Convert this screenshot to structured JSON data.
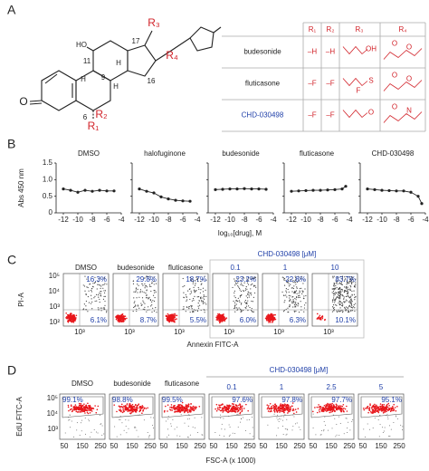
{
  "panel_a": {
    "label": "A",
    "structure": {
      "labels": [
        "HO",
        "H",
        "H",
        "H",
        "R₂",
        "R₁",
        "R₃",
        "R₄",
        "17",
        "16",
        "9",
        "11",
        "6",
        "O"
      ]
    },
    "table": {
      "header": [
        "R₁",
        "R₂",
        "R₃",
        "R₄"
      ],
      "rows": [
        {
          "name": "budesonide",
          "r1": "–H",
          "r2": "–H",
          "r3": [
            "OH"
          ],
          "r4": [
            "O",
            "O"
          ]
        },
        {
          "name": "fluticasone",
          "r1": "–F",
          "r2": "–F",
          "r3": [
            "S",
            "F"
          ],
          "r4": [
            "O",
            "O"
          ]
        },
        {
          "name": "CHD-030498",
          "r1": "–F",
          "r2": "–F",
          "r3": [
            "O"
          ],
          "r4": [
            "O",
            "N"
          ]
        }
      ]
    }
  },
  "panel_b": {
    "label": "B",
    "x_label": "log₁₀[drug], M"
  },
  "chart_data": [
    {
      "type": "line",
      "title": "DMSO",
      "title_color": "#222222",
      "y_label": "Abs 450 nm",
      "color": "#222222",
      "x": [
        -12,
        -11,
        -10,
        -9,
        -8,
        -7,
        -6,
        -5
      ],
      "values": [
        0.72,
        0.68,
        0.62,
        0.68,
        0.65,
        0.68,
        0.66,
        0.66
      ],
      "xlim": [
        -13,
        -4
      ],
      "ylim": [
        0,
        1.5
      ],
      "xticks": [
        -12,
        -10,
        -8,
        -6,
        -4
      ],
      "yticks": [
        0,
        0.5,
        {
          "value": 1,
          "label": "1.0"
        },
        1.5
      ]
    },
    {
      "type": "line",
      "title": "halofuginone",
      "title_color": "#222222",
      "color": "#222222",
      "x": [
        -12,
        -11,
        -10,
        -9,
        -8,
        -7,
        -6,
        -5
      ],
      "values": [
        0.72,
        0.65,
        0.6,
        0.48,
        0.42,
        0.38,
        0.36,
        0.35
      ],
      "xlim": [
        -13,
        -4
      ],
      "ylim": [
        0,
        1.5
      ],
      "xticks": [
        -12,
        -10,
        -8,
        -6,
        -4
      ],
      "yticks": [
        0,
        0.5,
        1,
        1.5
      ]
    },
    {
      "type": "line",
      "title": "budesonide",
      "title_color": "#222222",
      "color": "#222222",
      "x": [
        -12,
        -11,
        -10,
        -9,
        -8,
        -7,
        -6,
        -5
      ],
      "values": [
        0.7,
        0.71,
        0.72,
        0.72,
        0.73,
        0.72,
        0.72,
        0.71
      ],
      "xlim": [
        -13,
        -4
      ],
      "ylim": [
        0,
        1.5
      ],
      "xticks": [
        -12,
        -10,
        -8,
        -6,
        -4
      ],
      "yticks": [
        0,
        0.5,
        1,
        1.5
      ]
    },
    {
      "type": "line",
      "title": "fluticasone",
      "title_color": "#222222",
      "color": "#222222",
      "x": [
        -12,
        -11,
        -10,
        -9,
        -8,
        -7,
        -6,
        -5,
        -4.5
      ],
      "values": [
        0.65,
        0.66,
        0.67,
        0.68,
        0.68,
        0.69,
        0.7,
        0.72,
        0.8
      ],
      "xlim": [
        -13,
        -4
      ],
      "ylim": [
        0,
        1.5
      ],
      "xticks": [
        -12,
        -10,
        -8,
        -6,
        -4
      ],
      "yticks": [
        0,
        0.5,
        1,
        1.5
      ]
    },
    {
      "type": "line",
      "title": "CHD-030498",
      "title_color": "#1f3fa8",
      "color": "#222222",
      "x": [
        -12,
        -11,
        -10,
        -9,
        -8,
        -7,
        -6,
        -5,
        -4.5
      ],
      "values": [
        0.72,
        0.7,
        0.68,
        0.67,
        0.66,
        0.66,
        0.62,
        0.5,
        0.28
      ],
      "xlim": [
        -13,
        -4
      ],
      "ylim": [
        0,
        1.5
      ],
      "xticks": [
        -12,
        -10,
        -8,
        -6,
        -4
      ],
      "yticks": [
        0,
        0.5,
        1,
        1.5
      ]
    }
  ],
  "panel_c": {
    "label": "C",
    "group_label": "CHD-030498 [μM]",
    "y_label": "PI-A",
    "x_label": "Annexin FITC-A",
    "y_ticks": [
      "10⁵",
      "10⁴",
      "10³",
      "10²"
    ],
    "x_tick": "10³",
    "plots": [
      {
        "title": "DMSO",
        "upper": "16.3%",
        "lower": "6.1%"
      },
      {
        "title": "budesonide",
        "upper": "29.8%",
        "lower": "8.7%"
      },
      {
        "title": "fluticasone",
        "upper": "18.7%",
        "lower": "5.5%"
      },
      {
        "title": "0.1",
        "upper": "23.2%",
        "lower": "6.0%"
      },
      {
        "title": "1",
        "upper": "22.8%",
        "lower": "6.3%"
      },
      {
        "title": "10",
        "upper": "83.7%",
        "lower": "10.1%"
      }
    ]
  },
  "panel_d": {
    "label": "D",
    "group_label": "CHD-030498 [μM]",
    "y_label": "EdU FITC-A",
    "x_label": "FSC-A (x 1000)",
    "y_ticks": [
      "10⁵",
      "10⁴",
      "10³"
    ],
    "x_ticks": [
      "50",
      "150",
      "250"
    ],
    "plots": [
      {
        "title": "DMSO",
        "percent": "99.1%"
      },
      {
        "title": "budesonide",
        "percent": "98.8%"
      },
      {
        "title": "fluticasone",
        "percent": "99.5%"
      },
      {
        "title": "0.1",
        "percent": "97.6%"
      },
      {
        "title": "1",
        "percent": "97.8%"
      },
      {
        "title": "2.5",
        "percent": "97.7%"
      },
      {
        "title": "5",
        "percent": "95.1%"
      }
    ]
  }
}
